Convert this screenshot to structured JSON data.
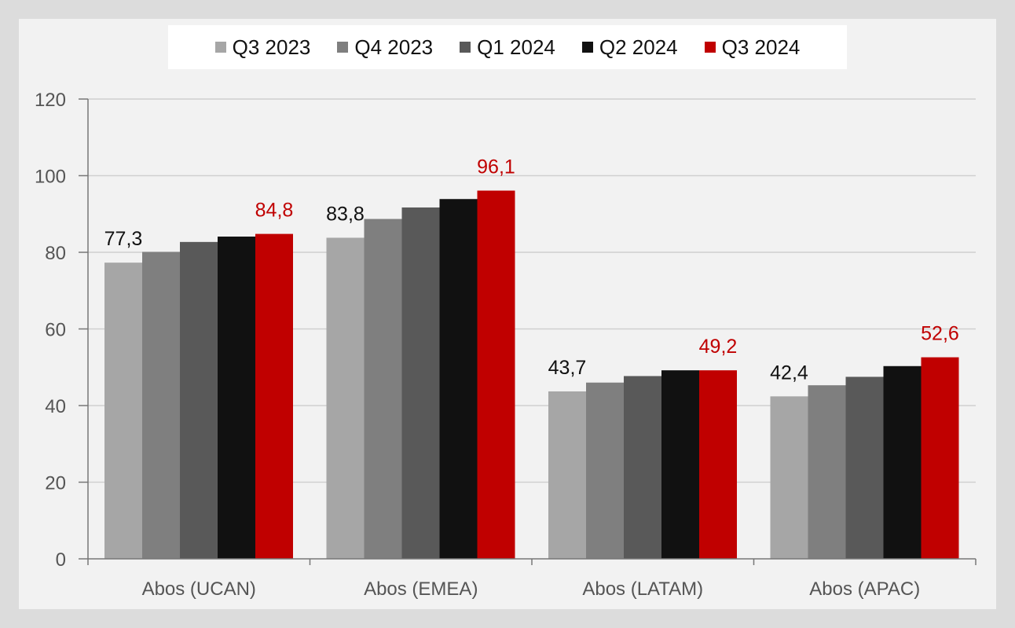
{
  "chart_data": {
    "type": "bar",
    "categories": [
      "Abos (UCAN)",
      "Abos (EMEA)",
      "Abos (LATAM)",
      "Abos (APAC)"
    ],
    "series": [
      {
        "name": "Q3 2023",
        "color": "#a6a6a6",
        "values": [
          77.3,
          83.8,
          43.7,
          42.4
        ]
      },
      {
        "name": "Q4 2023",
        "color": "#7f7f7f",
        "values": [
          80.1,
          88.7,
          46.0,
          45.3
        ]
      },
      {
        "name": "Q1 2024",
        "color": "#595959",
        "values": [
          82.7,
          91.7,
          47.7,
          47.5
        ]
      },
      {
        "name": "Q2 2024",
        "color": "#111111",
        "values": [
          84.1,
          93.9,
          49.2,
          50.3
        ]
      },
      {
        "name": "Q3 2024",
        "color": "#c00000",
        "values": [
          84.8,
          96.1,
          49.2,
          52.6
        ]
      }
    ],
    "data_labels": [
      {
        "category": 0,
        "series": 0,
        "text": "77,3",
        "color": "#111111"
      },
      {
        "category": 0,
        "series": 4,
        "text": "84,8",
        "color": "#c00000"
      },
      {
        "category": 1,
        "series": 0,
        "text": "83,8",
        "color": "#111111"
      },
      {
        "category": 1,
        "series": 4,
        "text": "96,1",
        "color": "#c00000"
      },
      {
        "category": 2,
        "series": 0,
        "text": "43,7",
        "color": "#111111"
      },
      {
        "category": 2,
        "series": 4,
        "text": "49,2",
        "color": "#c00000"
      },
      {
        "category": 3,
        "series": 0,
        "text": "42,4",
        "color": "#111111"
      },
      {
        "category": 3,
        "series": 4,
        "text": "52,6",
        "color": "#c00000"
      }
    ],
    "y_ticks": [
      "0",
      "20",
      "40",
      "60",
      "80",
      "100",
      "120"
    ],
    "ylim": [
      0,
      120
    ],
    "grid": true,
    "legend_position": "top-center"
  }
}
